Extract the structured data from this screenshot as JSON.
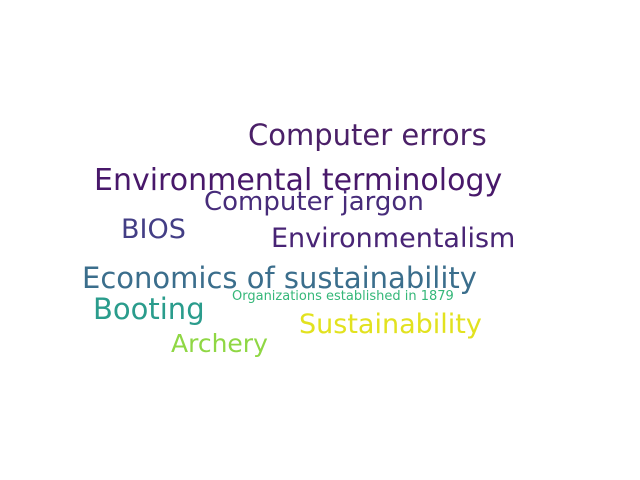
{
  "word_cloud": {
    "words": [
      {
        "text": "Computer errors",
        "color": "#4b2068"
      },
      {
        "text": "Environmental terminology",
        "color": "#48186a"
      },
      {
        "text": "Computer jargon",
        "color": "#472c7a"
      },
      {
        "text": "BIOS",
        "color": "#433e85"
      },
      {
        "text": "Environmentalism",
        "color": "#482475"
      },
      {
        "text": "Economics of sustainability",
        "color": "#3b6e8c"
      },
      {
        "text": "Organizations established in 1879",
        "color": "#35b779"
      },
      {
        "text": "Booting",
        "color": "#2a9c8c"
      },
      {
        "text": "Sustainability",
        "color": "#e2e21f"
      },
      {
        "text": "Archery",
        "color": "#8fd744"
      }
    ]
  }
}
